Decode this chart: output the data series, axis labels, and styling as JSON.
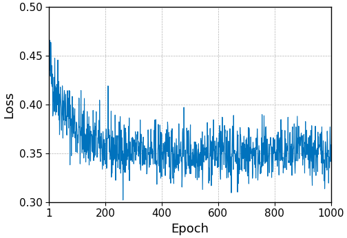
{
  "epochs": null,
  "title": "",
  "xlabel": "Epoch",
  "ylabel": "Loss",
  "xlim": [
    1,
    1000
  ],
  "ylim": [
    0.3,
    0.5
  ],
  "xticks": [
    1,
    200,
    400,
    600,
    800,
    1000
  ],
  "yticks": [
    0.3,
    0.35,
    0.4,
    0.45,
    0.5
  ],
  "line_color": "#0072BD",
  "line_width": 0.8,
  "grid": true,
  "grid_color": "#b0b0b0",
  "grid_linestyle": "--",
  "grid_linewidth": 0.5,
  "tick_fontsize": 11,
  "label_fontsize": 13,
  "fig_width": 5.04,
  "fig_height": 3.46,
  "dpi": 100,
  "spine_linewidth": 1.0
}
